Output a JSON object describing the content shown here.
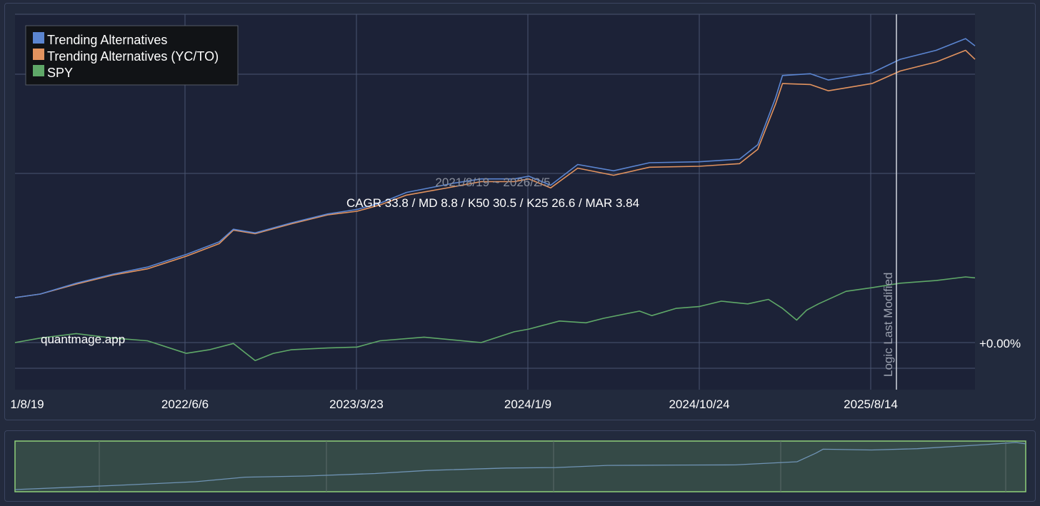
{
  "chart_data": {
    "type": "line",
    "title": "",
    "date_range": "2021/8/19 ~ 2026/2/5",
    "stats": "CAGR 33.8 / MD 8.8 / K50 30.5 / K25 26.6 / MAR 3.84",
    "watermark": "quantmage.app",
    "x_tick_labels": [
      "1/8/19",
      "2022/6/6",
      "2023/3/23",
      "2024/1/9",
      "2024/10/24",
      "2025/8/14"
    ],
    "y_tick_labels": [
      "+0.00%"
    ],
    "vline_label": "Logic Last Modified",
    "grid": true,
    "legend_position": "top-left",
    "x_range": [
      "2021-08-19",
      "2026-02-05"
    ],
    "colors": {
      "background": "#1c2237",
      "grid": "#4a5470",
      "navigator_fill": "#354a47",
      "navigator_border": "#8fcf7a",
      "navigator_line": "#6f93b4"
    },
    "series": [
      {
        "name": "Trending Alternatives",
        "color": "#5b85d0",
        "x": [
          "2021-08-19",
          "2021-10-01",
          "2021-12-01",
          "2022-02-01",
          "2022-04-01",
          "2022-06-06",
          "2022-08-01",
          "2022-08-25",
          "2022-10-01",
          "2022-12-01",
          "2023-02-01",
          "2023-03-23",
          "2023-05-01",
          "2023-06-15",
          "2023-09-01",
          "2023-10-20",
          "2023-12-15",
          "2024-01-09",
          "2024-02-15",
          "2024-04-01",
          "2024-06-01",
          "2024-08-01",
          "2024-10-24",
          "2025-01-01",
          "2025-02-01",
          "2025-03-03",
          "2025-03-15",
          "2025-05-01",
          "2025-06-01",
          "2025-08-14",
          "2025-10-01",
          "2025-12-01",
          "2026-01-20",
          "2026-02-05"
        ],
        "values": [
          0.5,
          0.54,
          0.66,
          0.76,
          0.84,
          0.98,
          1.12,
          1.26,
          1.22,
          1.33,
          1.43,
          1.48,
          1.55,
          1.67,
          1.77,
          1.82,
          1.82,
          1.85,
          1.75,
          1.98,
          1.91,
          2.0,
          2.01,
          2.04,
          2.2,
          2.72,
          2.97,
          2.99,
          2.92,
          3.0,
          3.15,
          3.25,
          3.38,
          3.3
        ]
      },
      {
        "name": "Trending Alternatives (YC/TO)",
        "color": "#e2935f",
        "x": [
          "2021-08-19",
          "2021-10-01",
          "2021-12-01",
          "2022-02-01",
          "2022-04-01",
          "2022-06-06",
          "2022-08-01",
          "2022-08-25",
          "2022-10-01",
          "2022-12-01",
          "2023-02-01",
          "2023-03-23",
          "2023-05-01",
          "2023-06-15",
          "2023-09-01",
          "2023-10-20",
          "2023-12-15",
          "2024-01-09",
          "2024-02-15",
          "2024-04-01",
          "2024-06-01",
          "2024-08-01",
          "2024-10-24",
          "2025-01-01",
          "2025-02-01",
          "2025-03-03",
          "2025-03-15",
          "2025-05-01",
          "2025-06-01",
          "2025-08-14",
          "2025-10-01",
          "2025-12-01",
          "2026-01-20",
          "2026-02-05"
        ],
        "values": [
          0.5,
          0.54,
          0.65,
          0.75,
          0.82,
          0.96,
          1.1,
          1.25,
          1.21,
          1.32,
          1.42,
          1.46,
          1.53,
          1.64,
          1.73,
          1.79,
          1.79,
          1.82,
          1.72,
          1.94,
          1.86,
          1.95,
          1.96,
          1.99,
          2.15,
          2.65,
          2.88,
          2.87,
          2.8,
          2.88,
          3.02,
          3.12,
          3.25,
          3.15
        ]
      },
      {
        "name": "SPY",
        "color": "#5fa868",
        "x": [
          "2021-08-19",
          "2021-10-01",
          "2021-12-01",
          "2022-02-01",
          "2022-04-01",
          "2022-06-06",
          "2022-07-15",
          "2022-08-25",
          "2022-10-01",
          "2022-11-01",
          "2022-12-01",
          "2023-02-01",
          "2023-03-23",
          "2023-05-01",
          "2023-07-15",
          "2023-10-20",
          "2023-12-15",
          "2024-01-09",
          "2024-03-01",
          "2024-04-15",
          "2024-05-15",
          "2024-07-15",
          "2024-08-05",
          "2024-09-15",
          "2024-10-24",
          "2024-12-01",
          "2025-01-15",
          "2025-02-19",
          "2025-03-15",
          "2025-04-08",
          "2025-04-25",
          "2025-05-15",
          "2025-07-01",
          "2025-08-14",
          "2025-10-01",
          "2025-12-01",
          "2026-01-20",
          "2026-02-05"
        ],
        "values": [
          0.0,
          0.05,
          0.1,
          0.05,
          0.02,
          -0.12,
          -0.08,
          -0.01,
          -0.2,
          -0.12,
          -0.08,
          -0.06,
          -0.05,
          0.02,
          0.06,
          0.0,
          0.12,
          0.15,
          0.24,
          0.22,
          0.27,
          0.35,
          0.3,
          0.38,
          0.4,
          0.46,
          0.43,
          0.48,
          0.38,
          0.25,
          0.36,
          0.43,
          0.57,
          0.61,
          0.66,
          0.69,
          0.73,
          0.72
        ]
      }
    ],
    "navigator_series": {
      "x": [
        "2021-08-19",
        "2022-02-01",
        "2022-06-06",
        "2022-08-25",
        "2022-12-01",
        "2023-03-23",
        "2023-06-15",
        "2023-10-20",
        "2024-01-09",
        "2024-04-01",
        "2024-08-01",
        "2024-10-24",
        "2025-02-01",
        "2025-03-03",
        "2025-03-15",
        "2025-06-01",
        "2025-08-14",
        "2025-12-01",
        "2026-01-20",
        "2026-02-05"
      ],
      "values": [
        0.5,
        0.76,
        0.98,
        1.26,
        1.33,
        1.48,
        1.67,
        1.82,
        1.85,
        1.98,
        2.0,
        2.01,
        2.2,
        2.72,
        2.97,
        2.92,
        3.0,
        3.25,
        3.38,
        3.3
      ]
    }
  }
}
